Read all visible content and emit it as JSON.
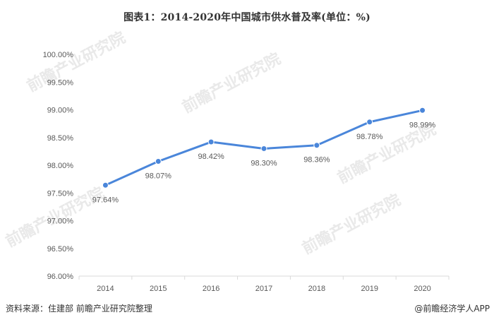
{
  "title": "图表1：2014-2020年中国城市供水普及率(单位：%)",
  "source": "资料来源：住建部 前瞻产业研究院整理",
  "brand": "@前瞻经济学人APP",
  "watermark_text": "前瞻产业研究院",
  "colors": {
    "line": "#4A86DA",
    "text": "#595959",
    "axis": "#d9d9d9"
  },
  "chart_data": {
    "type": "line",
    "x": [
      "2014",
      "2015",
      "2016",
      "2017",
      "2018",
      "2019",
      "2020"
    ],
    "series": [
      {
        "values": [
          97.64,
          98.07,
          98.42,
          98.3,
          98.36,
          98.78,
          98.99
        ],
        "labels": [
          "97.64%",
          "98.07%",
          "98.42%",
          "98.30%",
          "98.36%",
          "98.78%",
          "98.99%"
        ]
      }
    ],
    "yticks": [
      "96.00%",
      "96.50%",
      "97.00%",
      "97.50%",
      "98.00%",
      "98.50%",
      "99.00%",
      "99.50%",
      "100.00%"
    ],
    "ylim": [
      96,
      100
    ],
    "grid": false,
    "legend": "none"
  }
}
